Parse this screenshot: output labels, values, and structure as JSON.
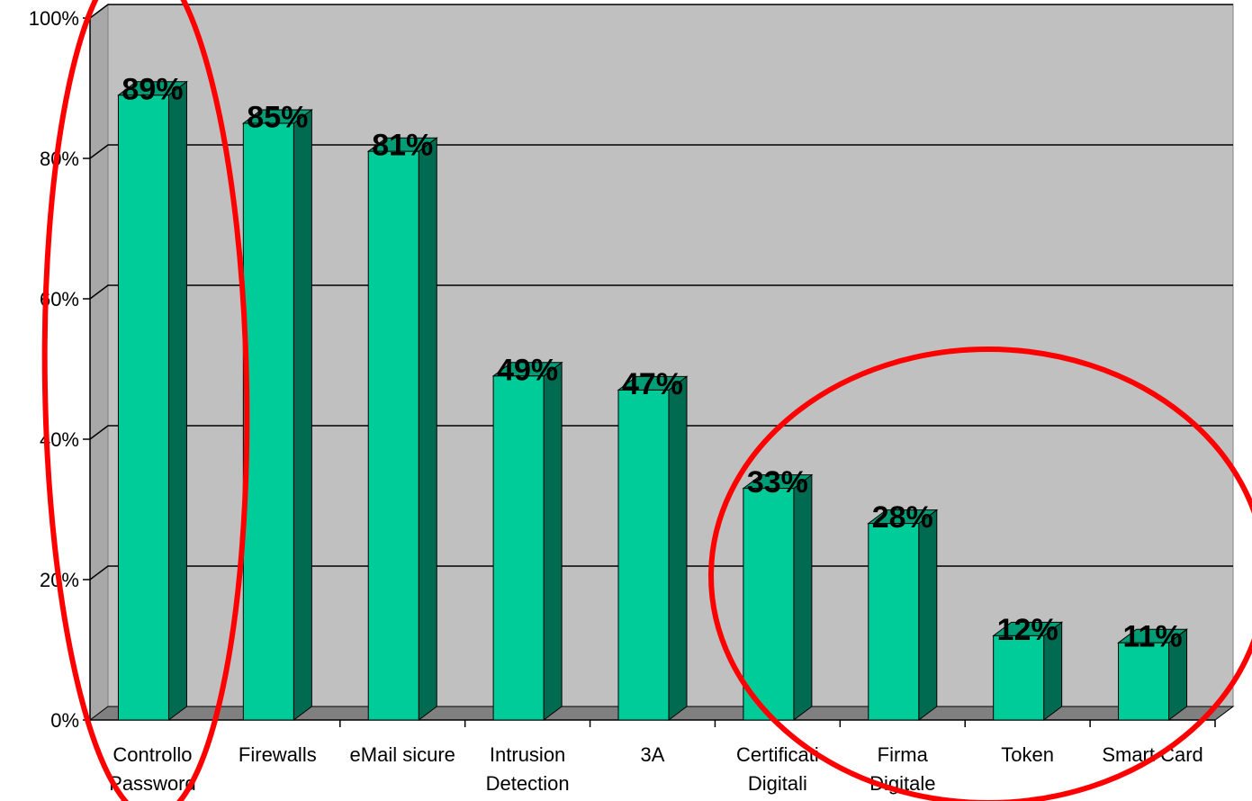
{
  "chart_data": {
    "type": "bar",
    "categories": [
      [
        "Controllo",
        "Password"
      ],
      [
        "Firewalls"
      ],
      [
        "eMail sicure"
      ],
      [
        "Intrusion",
        "Detection"
      ],
      [
        "3A"
      ],
      [
        "Certificati",
        "Digitali"
      ],
      [
        "Firma",
        "Digitale"
      ],
      [
        "Token"
      ],
      [
        "Smart Card"
      ]
    ],
    "values": [
      89,
      85,
      81,
      49,
      47,
      33,
      28,
      12,
      11
    ],
    "data_labels": [
      "89%",
      "85%",
      "81%",
      "49%",
      "47%",
      "33%",
      "28%",
      "12%",
      "11%"
    ],
    "y_ticks": [
      "0%",
      "20%",
      "40%",
      "60%",
      "80%",
      "100%"
    ],
    "ylim": [
      0,
      100
    ],
    "grid": true,
    "colors": {
      "bar_front": "#00CC99",
      "bar_side": "#006B50",
      "bar_top": "#009E76",
      "plot_bg": "#C0C0C0",
      "floor": "#808080",
      "highlight": "#FF0000"
    },
    "annotations": {
      "highlighted_categories": [
        0,
        5,
        6,
        7,
        8
      ]
    }
  }
}
